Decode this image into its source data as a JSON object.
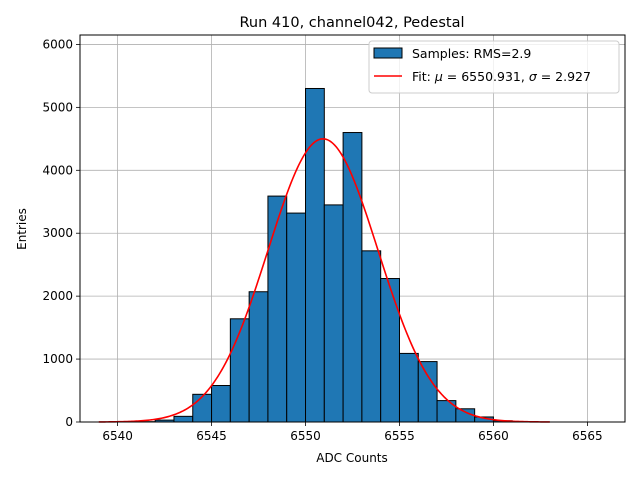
{
  "chart_data": {
    "type": "bar",
    "title": "Run 410, channel042, Pedestal",
    "xlabel": "ADC Counts",
    "ylabel": "Entries",
    "xlim": [
      6538,
      6567
    ],
    "ylim": [
      0,
      6150
    ],
    "xticks": [
      6540,
      6545,
      6550,
      6555,
      6560,
      6565
    ],
    "yticks": [
      0,
      1000,
      2000,
      3000,
      4000,
      5000,
      6000
    ],
    "grid": true,
    "legend_position": "top-right",
    "bar_color": "#1f77b4",
    "fit_color": "#ff0000",
    "bin_edges": [
      6539,
      6540,
      6541,
      6542,
      6543,
      6544,
      6545,
      6546,
      6547,
      6548,
      6549,
      6550,
      6551,
      6552,
      6553,
      6554,
      6555,
      6556,
      6557,
      6558,
      6559,
      6560,
      6561,
      6562,
      6563
    ],
    "histogram": {
      "name": "Samples: RMS=2.9",
      "counts": [
        0,
        0,
        5,
        30,
        90,
        440,
        580,
        1640,
        2070,
        3590,
        3320,
        5300,
        3450,
        4600,
        2720,
        2280,
        1090,
        960,
        340,
        210,
        80,
        20,
        5,
        0
      ]
    },
    "fit": {
      "name_prefix": "Fit: ",
      "mu_symbol": "μ",
      "sigma_symbol": "σ",
      "mu": 6550.931,
      "sigma": 2.927,
      "amplitude": 4500,
      "x_range": [
        6539,
        6563
      ]
    }
  }
}
